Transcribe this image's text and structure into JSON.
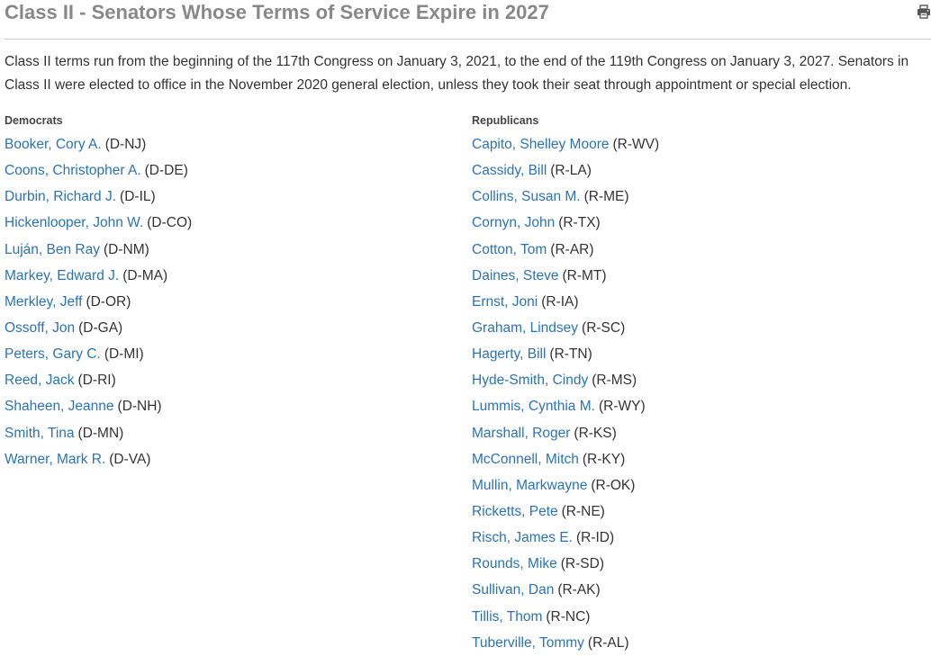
{
  "header": {
    "title": "Class II - Senators Whose Terms of Service Expire in 2027",
    "print_icon": "printer-icon"
  },
  "intro": "Class II terms run from the beginning of the 117th Congress on January 3, 2021, to the end of the 119th Congress on January 3, 2027. Senators in Class II were elected to office in the November 2020 general election, unless they took their seat through appointment or special election.",
  "colors": {
    "link": "#2a73b8",
    "title": "#888888",
    "text": "#333333"
  },
  "democrats": {
    "heading": "Democrats",
    "members": [
      {
        "name": "Booker, Cory A.",
        "party": "(D-NJ)"
      },
      {
        "name": "Coons, Christopher A.",
        "party": "(D-DE)"
      },
      {
        "name": "Durbin, Richard J.",
        "party": "(D-IL)"
      },
      {
        "name": "Hickenlooper, John W.",
        "party": "(D-CO)"
      },
      {
        "name": "Luján, Ben Ray",
        "party": "(D-NM)"
      },
      {
        "name": "Markey, Edward J.",
        "party": "(D-MA)"
      },
      {
        "name": "Merkley, Jeff",
        "party": "(D-OR)"
      },
      {
        "name": "Ossoff, Jon",
        "party": "(D-GA)"
      },
      {
        "name": "Peters, Gary C.",
        "party": "(D-MI)"
      },
      {
        "name": "Reed, Jack",
        "party": "(D-RI)"
      },
      {
        "name": "Shaheen, Jeanne",
        "party": "(D-NH)"
      },
      {
        "name": "Smith, Tina",
        "party": "(D-MN)"
      },
      {
        "name": "Warner, Mark R.",
        "party": "(D-VA)"
      }
    ]
  },
  "republicans": {
    "heading": "Republicans",
    "members": [
      {
        "name": "Capito, Shelley Moore",
        "party": "(R-WV)"
      },
      {
        "name": "Cassidy, Bill",
        "party": "(R-LA)"
      },
      {
        "name": "Collins, Susan M.",
        "party": "(R-ME)"
      },
      {
        "name": "Cornyn, John",
        "party": "(R-TX)"
      },
      {
        "name": "Cotton, Tom",
        "party": "(R-AR)"
      },
      {
        "name": "Daines, Steve",
        "party": "(R-MT)"
      },
      {
        "name": "Ernst, Joni",
        "party": "(R-IA)"
      },
      {
        "name": "Graham, Lindsey",
        "party": "(R-SC)"
      },
      {
        "name": "Hagerty, Bill",
        "party": "(R-TN)"
      },
      {
        "name": "Hyde-Smith, Cindy",
        "party": "(R-MS)"
      },
      {
        "name": "Lummis, Cynthia M.",
        "party": "(R-WY)"
      },
      {
        "name": "Marshall, Roger",
        "party": "(R-KS)"
      },
      {
        "name": "McConnell, Mitch",
        "party": "(R-KY)"
      },
      {
        "name": "Mullin, Markwayne",
        "party": "(R-OK)"
      },
      {
        "name": "Ricketts, Pete",
        "party": "(R-NE)"
      },
      {
        "name": "Risch, James E.",
        "party": "(R-ID)"
      },
      {
        "name": "Rounds, Mike",
        "party": "(R-SD)"
      },
      {
        "name": "Sullivan, Dan",
        "party": "(R-AK)"
      },
      {
        "name": "Tillis, Thom",
        "party": "(R-NC)"
      },
      {
        "name": "Tuberville, Tommy",
        "party": "(R-AL)"
      }
    ]
  }
}
